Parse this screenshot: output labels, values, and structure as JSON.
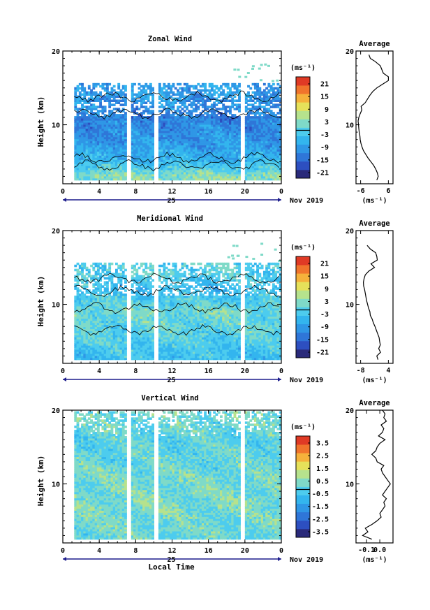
{
  "chart_data": [
    {
      "type": "heatmap",
      "title": "Zonal Wind",
      "xlabel": "",
      "ylabel": "Height (km)",
      "xlim": [
        0,
        24
      ],
      "ylim": [
        2,
        20
      ],
      "x_ticks": [
        "0",
        "4",
        "8",
        "12",
        "16",
        "20",
        "0"
      ],
      "y_ticks": [
        "20",
        "10"
      ],
      "date_label": "25",
      "month_label": "Nov 2019",
      "colorbar": {
        "unit": "(ms⁻¹)",
        "ticks": [
          "21",
          "15",
          "9",
          "3",
          "-3",
          "-9",
          "-15",
          "-21"
        ],
        "range": [
          -24,
          24
        ],
        "colors": [
          "#2a2a7a",
          "#2d4fc0",
          "#2f76d8",
          "#2f97e6",
          "#33b5ee",
          "#4dccee",
          "#7fdac8",
          "#b6e28d",
          "#e6e15a",
          "#f5b13b",
          "#f0742c",
          "#e03a25"
        ]
      },
      "data_height_range": [
        2.5,
        15.5
      ],
      "data_gaps_hours": [
        7.3,
        10.2,
        19.7
      ],
      "field_description_profile": [
        {
          "h": 3,
          "v": 3
        },
        {
          "h": 5,
          "v": -6
        },
        {
          "h": 8,
          "v": -10
        },
        {
          "h": 11,
          "v": -13
        },
        {
          "h": 14,
          "v": -9
        }
      ],
      "average_profile": {
        "title": "Average",
        "xlabel": "(ms⁻¹)",
        "x_ticks": [
          "-6",
          "6"
        ],
        "xlim": [
          -8,
          8
        ],
        "ylim": [
          2,
          20
        ],
        "y_ticks": [
          "20",
          "10"
        ],
        "h": [
          2.5,
          3,
          3.5,
          4,
          4.5,
          5,
          5.5,
          6,
          6.5,
          7,
          7.5,
          8,
          8.5,
          9,
          9.5,
          10,
          10.5,
          11,
          11.5,
          12,
          12.5,
          13,
          13.5,
          14,
          14.5,
          15,
          15.5,
          16,
          16.5,
          17,
          18,
          18.6,
          19,
          19.5
        ],
        "v": [
          1,
          1.6,
          1.2,
          0.5,
          -0.4,
          -1.6,
          -2.8,
          -3.8,
          -4.8,
          -5.4,
          -5.9,
          -6.2,
          -6.3,
          -6.6,
          -6.8,
          -6.9,
          -7.1,
          -6.8,
          -6.2,
          -5.5,
          -5.8,
          -4.0,
          -3.0,
          -2.0,
          -0.8,
          1.0,
          3.5,
          6.0,
          6.0,
          3.8,
          2.5,
          0.2,
          -1.8,
          -2.4
        ]
      }
    },
    {
      "type": "heatmap",
      "title": "Meridional Wind",
      "xlabel": "",
      "ylabel": "Height (km)",
      "xlim": [
        0,
        24
      ],
      "ylim": [
        2,
        20
      ],
      "x_ticks": [
        "0",
        "4",
        "8",
        "12",
        "16",
        "20",
        "0"
      ],
      "y_ticks": [
        "20",
        "10"
      ],
      "date_label": "25",
      "month_label": "Nov 2019",
      "colorbar": {
        "unit": "(ms⁻¹)",
        "ticks": [
          "21",
          "15",
          "9",
          "3",
          "-3",
          "-9",
          "-15",
          "-21"
        ],
        "range": [
          -24,
          24
        ],
        "colors": [
          "#2a2a7a",
          "#2d4fc0",
          "#2f76d8",
          "#2f97e6",
          "#33b5ee",
          "#4dccee",
          "#7fdac8",
          "#b6e28d",
          "#e6e15a",
          "#f5b13b",
          "#f0742c",
          "#e03a25"
        ]
      },
      "data_height_range": [
        2.5,
        15.5
      ],
      "data_gaps_hours": [
        7.3,
        10.2,
        19.7
      ],
      "field_description_profile": [
        {
          "h": 3,
          "v": -4
        },
        {
          "h": 6,
          "v": -1
        },
        {
          "h": 9,
          "v": 1
        },
        {
          "h": 12,
          "v": -5
        },
        {
          "h": 14,
          "v": -1
        }
      ],
      "average_profile": {
        "title": "Average",
        "xlabel": "(ms⁻¹)",
        "x_ticks": [
          "-8",
          "4"
        ],
        "xlim": [
          -10,
          6
        ],
        "ylim": [
          2,
          20
        ],
        "y_ticks": [
          "20",
          "10"
        ],
        "h": [
          2.5,
          3,
          3.5,
          4,
          4.5,
          5,
          5.5,
          6,
          6.5,
          7,
          7.5,
          8,
          8.5,
          9,
          9.5,
          10,
          10.5,
          11,
          11.5,
          12,
          12.5,
          13,
          13.5,
          14,
          14.5,
          15,
          15.5,
          16,
          16.5,
          17,
          17.5,
          18
        ],
        "v": [
          -0.5,
          -1.0,
          0.6,
          -0.2,
          0.5,
          0.2,
          0.0,
          -0.6,
          -1.2,
          -1.8,
          -2.5,
          -3.0,
          -3.8,
          -4.0,
          -4.6,
          -5.0,
          -5.4,
          -5.7,
          -6.0,
          -6.3,
          -6.7,
          -6.8,
          -6.5,
          -6.0,
          -4.5,
          -2.0,
          -3.5,
          -0.8,
          -1.0,
          -1.5,
          -3.8,
          -5.2
        ]
      }
    },
    {
      "type": "heatmap",
      "title": "Vertical Wind",
      "xlabel": "Local Time",
      "ylabel": "Height (km)",
      "xlim": [
        0,
        24
      ],
      "ylim": [
        2,
        20
      ],
      "x_ticks": [
        "0",
        "4",
        "8",
        "12",
        "16",
        "20",
        "0"
      ],
      "y_ticks": [
        "20",
        "10"
      ],
      "date_label": "25",
      "month_label": "Nov 2019",
      "colorbar": {
        "unit": "(ms⁻¹)",
        "ticks": [
          "3.5",
          "2.5",
          "1.5",
          "0.5",
          "-0.5",
          "-1.5",
          "-2.5",
          "-3.5"
        ],
        "range": [
          -4,
          4
        ],
        "colors": [
          "#2a2a7a",
          "#2d4fc0",
          "#2f76d8",
          "#2f97e6",
          "#33b5ee",
          "#4dccee",
          "#7fdac8",
          "#b6e28d",
          "#e6e15a",
          "#f5b13b",
          "#f0742c",
          "#e03a25"
        ]
      },
      "data_height_range": [
        2.5,
        19.8
      ],
      "data_gaps_hours": [
        7.3,
        10.2,
        19.7
      ],
      "field_description_profile": [
        {
          "h": 3,
          "v": 0.1
        },
        {
          "h": 8,
          "v": 0.3
        },
        {
          "h": 12,
          "v": 0.1
        },
        {
          "h": 16,
          "v": -0.1
        },
        {
          "h": 19,
          "v": 0.2
        }
      ],
      "average_profile": {
        "title": "Average",
        "xlabel": "(ms⁻¹)",
        "x_ticks": [
          "-0.1",
          "0.0"
        ],
        "xlim": [
          -0.18,
          0.1
        ],
        "ylim": [
          2,
          20
        ],
        "y_ticks": [
          "20",
          "10"
        ],
        "h": [
          2.5,
          3,
          3.5,
          4,
          4.5,
          5,
          5.5,
          6,
          6.5,
          7,
          7.5,
          8,
          8.5,
          9,
          9.5,
          10,
          10.5,
          11,
          11.5,
          12,
          12.5,
          13,
          13.5,
          14,
          14.5,
          15,
          15.5,
          16,
          16.5,
          17,
          17.5,
          18,
          18.5,
          19,
          19.5,
          20
        ],
        "v": [
          -0.06,
          -0.13,
          -0.09,
          -0.11,
          -0.06,
          -0.02,
          0.01,
          0.0,
          0.02,
          0.04,
          0.03,
          0.05,
          0.02,
          0.04,
          0.06,
          0.08,
          0.06,
          0.04,
          0.02,
          0.01,
          0.03,
          -0.02,
          -0.03,
          -0.06,
          -0.03,
          -0.02,
          0.0,
          0.04,
          -0.01,
          0.02,
          0.03,
          0.01,
          0.05,
          0.03,
          0.04,
          0.02
        ]
      }
    }
  ]
}
